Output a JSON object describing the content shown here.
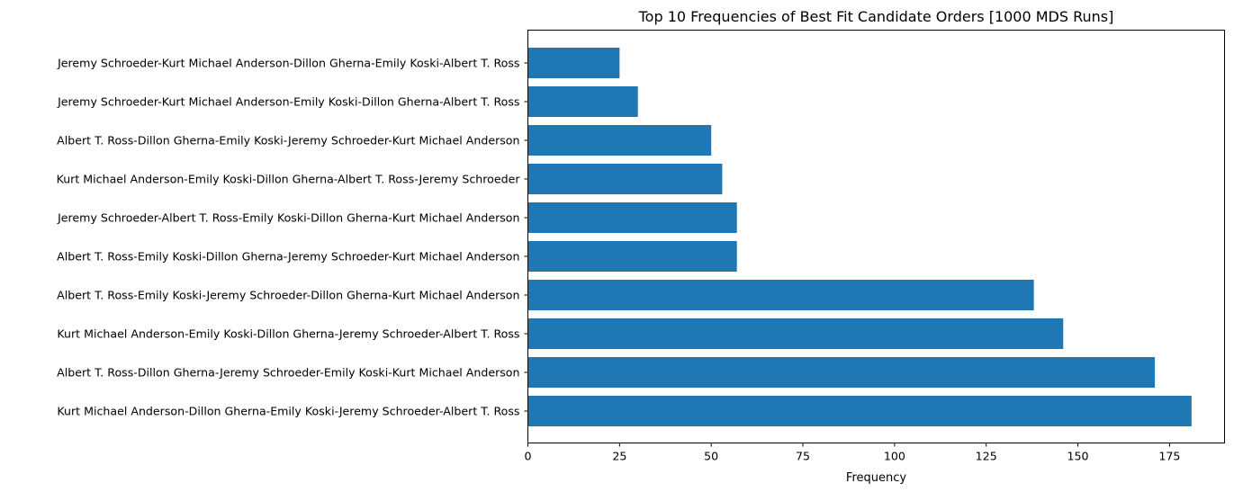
{
  "chart_data": {
    "type": "bar",
    "orientation": "horizontal",
    "title": "Top 10 Frequencies of Best Fit Candidate Orders [1000 MDS Runs]",
    "xlabel": "Frequency",
    "ylabel": "",
    "xlim": [
      0,
      190
    ],
    "xticks": [
      0,
      25,
      50,
      75,
      100,
      125,
      150,
      175
    ],
    "grid": false,
    "bar_color": "#1f77b4",
    "categories": [
      "Kurt Michael Anderson-Dillon Gherna-Emily Koski-Jeremy Schroeder-Albert T. Ross",
      "Albert T. Ross-Dillon Gherna-Jeremy Schroeder-Emily Koski-Kurt Michael Anderson",
      "Kurt Michael Anderson-Emily Koski-Dillon Gherna-Jeremy Schroeder-Albert T. Ross",
      "Albert T. Ross-Emily Koski-Jeremy Schroeder-Dillon Gherna-Kurt Michael Anderson",
      "Albert T. Ross-Emily Koski-Dillon Gherna-Jeremy Schroeder-Kurt Michael Anderson",
      "Jeremy Schroeder-Albert T. Ross-Emily Koski-Dillon Gherna-Kurt Michael Anderson",
      "Kurt Michael Anderson-Emily Koski-Dillon Gherna-Albert T. Ross-Jeremy Schroeder",
      "Albert T. Ross-Dillon Gherna-Emily Koski-Jeremy Schroeder-Kurt Michael Anderson",
      "Jeremy Schroeder-Kurt Michael Anderson-Emily Koski-Dillon Gherna-Albert T. Ross",
      "Jeremy Schroeder-Kurt Michael Anderson-Dillon Gherna-Emily Koski-Albert T. Ross"
    ],
    "values": [
      181,
      171,
      146,
      138,
      57,
      57,
      53,
      50,
      30,
      25
    ]
  }
}
